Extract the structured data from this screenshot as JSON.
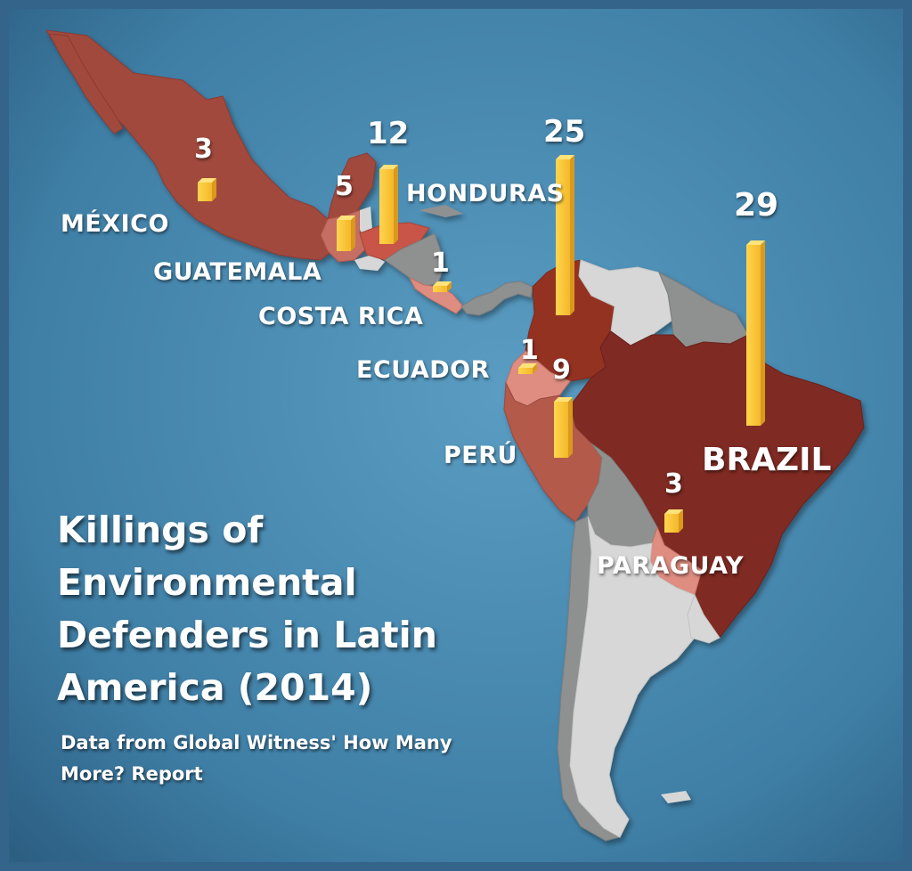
{
  "title": "Killings of Environmental Defenders in Latin America (2014)",
  "subtitle": "Data from Global Witness' How Many More? Report",
  "colors": {
    "ocean": "#3f7fa6",
    "bar": "#f6c233",
    "high": "#7f2a22",
    "mid": "#a2493d",
    "low": "#c76e62",
    "lowest": "#de8d80",
    "gray": "#8f9190",
    "light": "#d6d7d6"
  },
  "countries": {
    "mexico": {
      "name": "MÉXICO",
      "value": 3
    },
    "guatemala": {
      "name": "GUATEMALA",
      "value": 5
    },
    "honduras": {
      "name": "HONDURAS",
      "value": 12
    },
    "costa_rica": {
      "name": "COSTA RICA",
      "value": 1
    },
    "colombia": {
      "value": 25
    },
    "ecuador": {
      "name": "ECUADOR",
      "value": 1
    },
    "peru": {
      "name": "PERÚ",
      "value": 9
    },
    "brazil": {
      "name": "BRAZIL",
      "value": 29
    },
    "paraguay": {
      "name": "PARAGUAY",
      "value": 3
    }
  }
}
